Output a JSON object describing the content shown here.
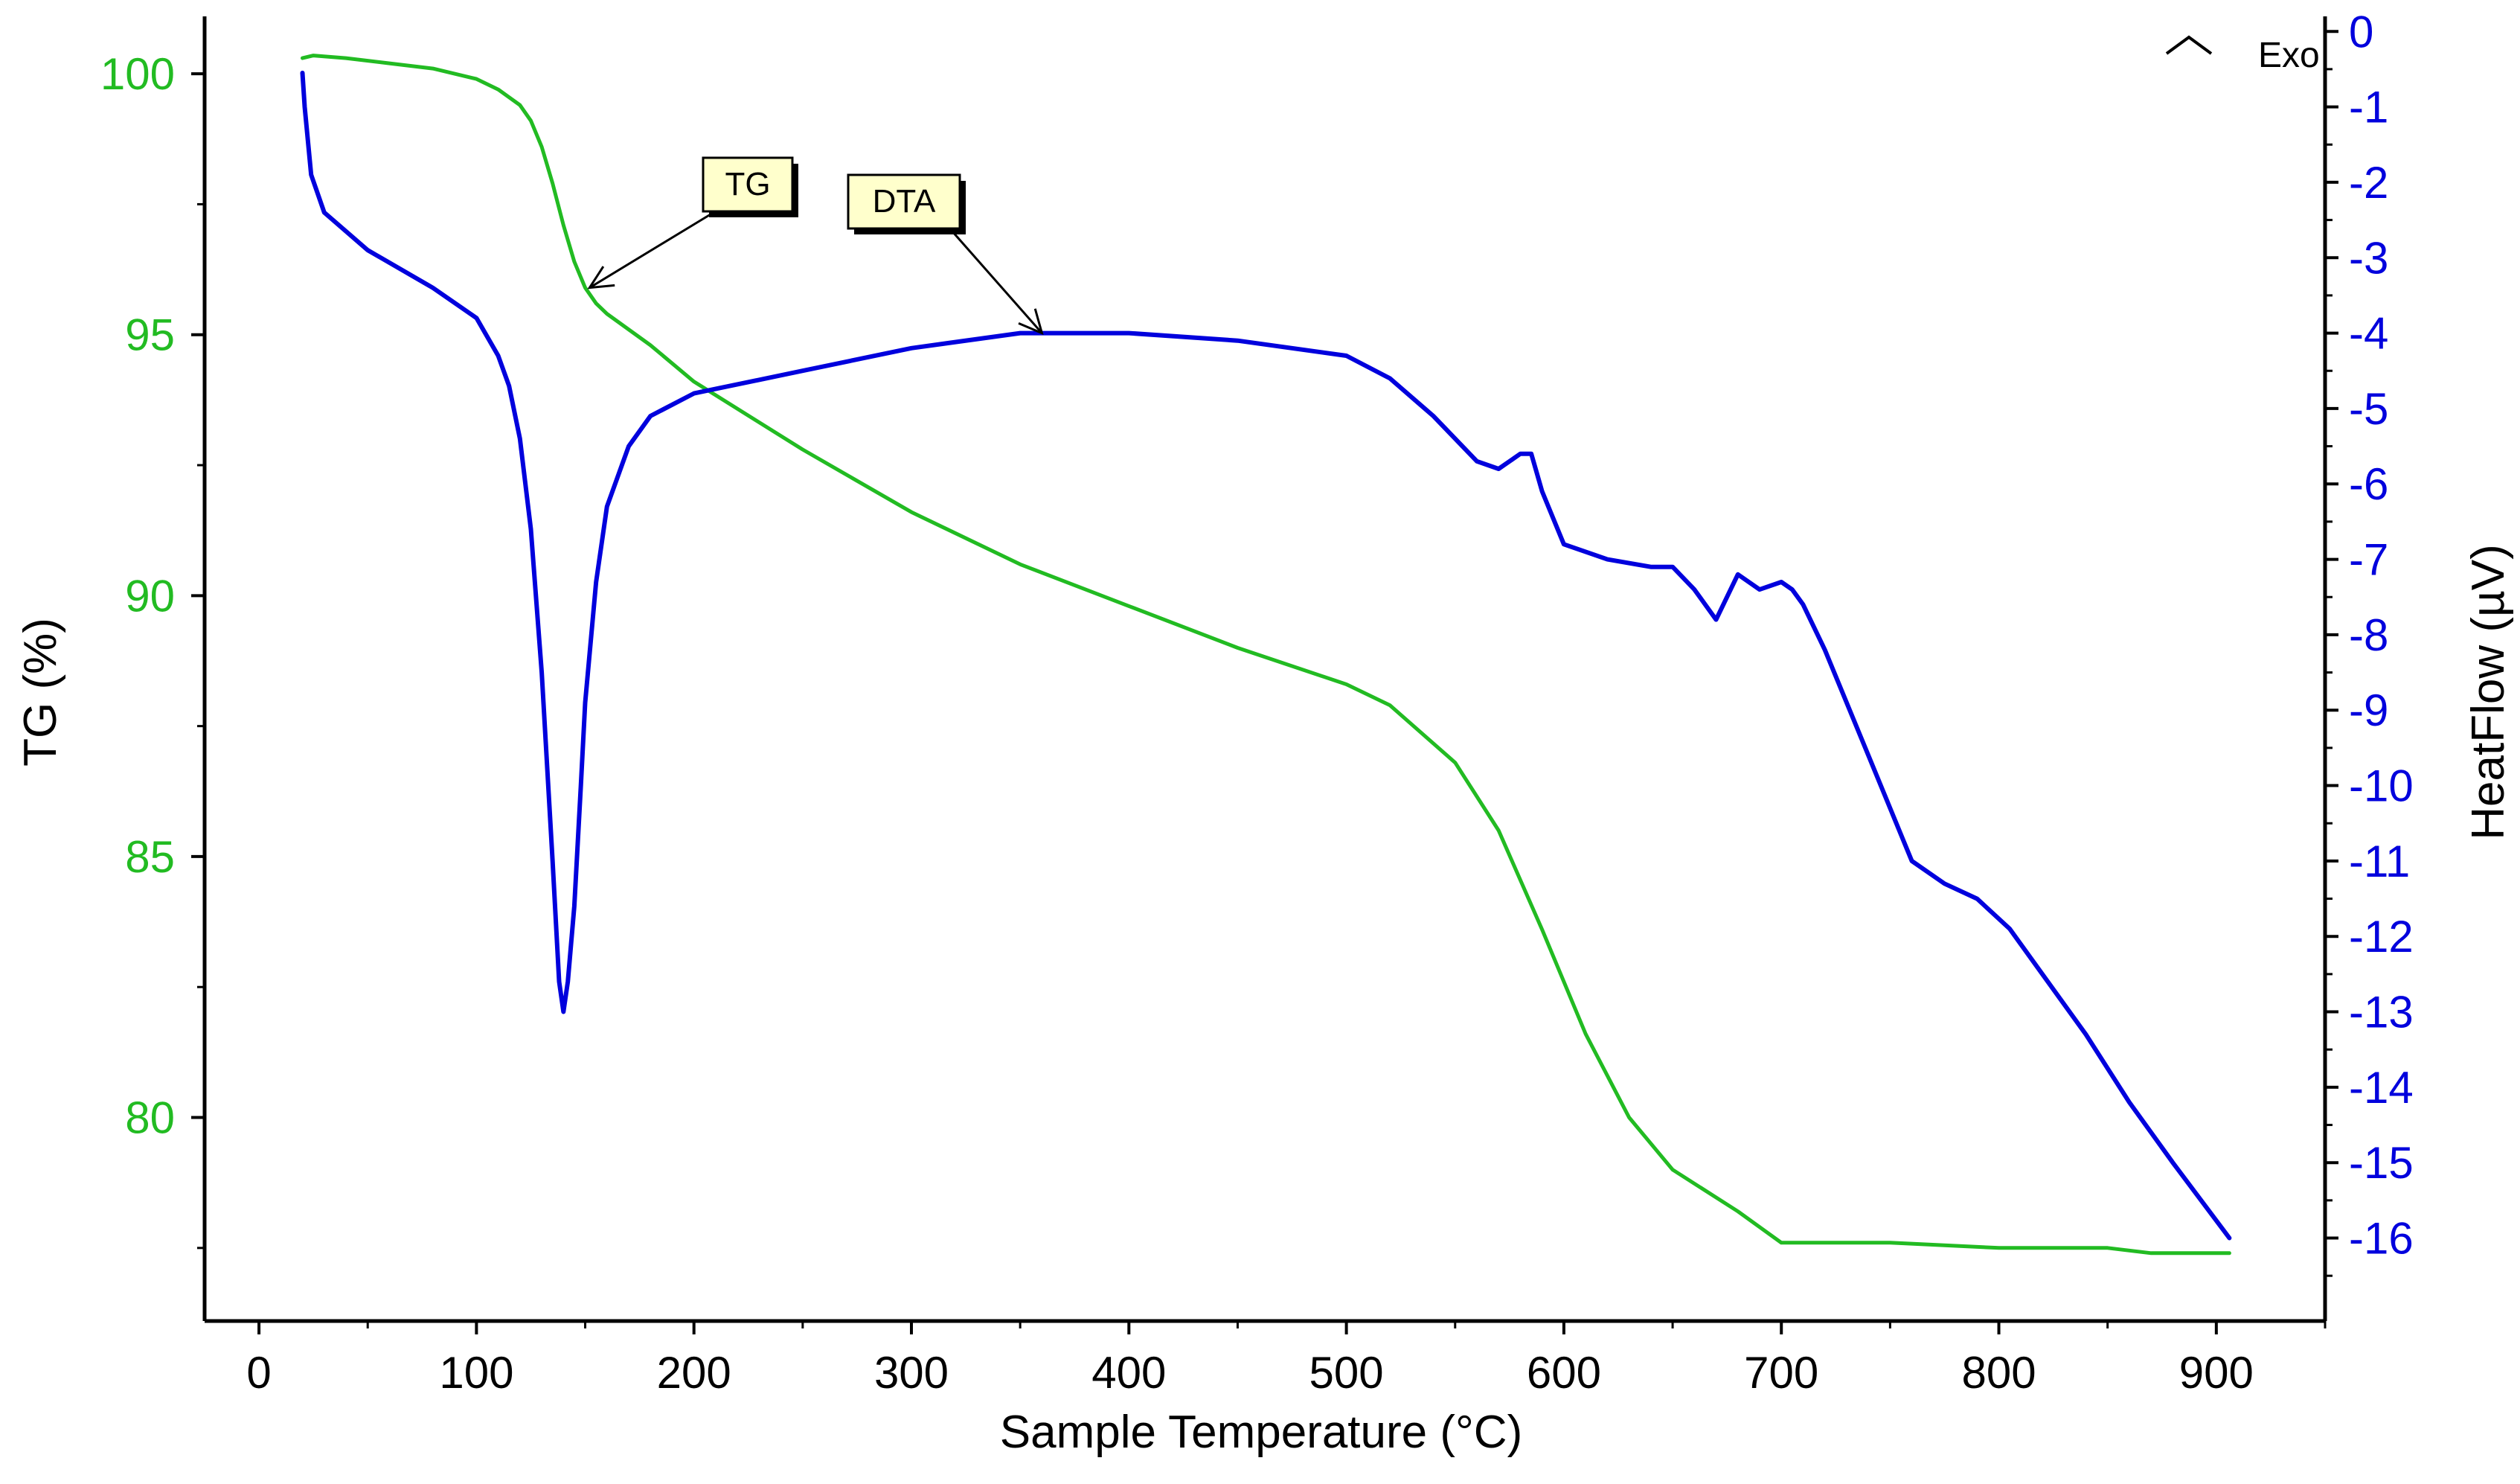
{
  "chart_data": {
    "type": "line",
    "title": "",
    "xlabel": "Sample Temperature (°C)",
    "ylabel_left": "TG (%)",
    "ylabel_right": "HeatFlow (µV)",
    "xlim": [
      -25,
      950
    ],
    "ylim_left": [
      76.1,
      101.1
    ],
    "ylim_right": [
      -17.1,
      0.2
    ],
    "x_ticks": [
      0,
      100,
      200,
      300,
      400,
      500,
      600,
      700,
      800,
      900
    ],
    "y_left_ticks": [
      80,
      85,
      90,
      95,
      100
    ],
    "y_right_ticks": [
      0,
      -1,
      -2,
      -3,
      -4,
      -5,
      -6,
      -7,
      -8,
      -9,
      -10,
      -11,
      -12,
      -13,
      -14,
      -15,
      -16
    ],
    "colors": {
      "tg": "#22bb22",
      "dta": "#0000dd",
      "left_axis_labels": "#22bb22",
      "right_axis_labels": "#0000dd",
      "callout_fill": "#ffffcc"
    },
    "series": [
      {
        "name": "TG",
        "axis": "left",
        "x": [
          20,
          25,
          40,
          60,
          80,
          100,
          110,
          120,
          125,
          130,
          135,
          140,
          145,
          150,
          155,
          160,
          180,
          200,
          250,
          300,
          350,
          400,
          450,
          500,
          520,
          550,
          570,
          590,
          610,
          630,
          650,
          680,
          700,
          750,
          800,
          850,
          870,
          906
        ],
        "values": [
          100.3,
          100.35,
          100.3,
          100.2,
          100.1,
          99.9,
          99.7,
          99.4,
          99.1,
          98.6,
          97.9,
          97.1,
          96.4,
          95.9,
          95.6,
          95.4,
          94.8,
          94.1,
          92.8,
          91.6,
          90.6,
          89.8,
          89.0,
          88.3,
          87.9,
          86.8,
          85.5,
          83.6,
          81.6,
          80.0,
          79.0,
          78.2,
          77.6,
          77.6,
          77.5,
          77.5,
          77.4,
          77.4
        ]
      },
      {
        "name": "DTA",
        "axis": "right",
        "x": [
          20,
          21,
          24,
          30,
          50,
          80,
          100,
          110,
          115,
          120,
          125,
          130,
          135,
          138,
          140,
          142,
          145,
          148,
          150,
          155,
          160,
          170,
          180,
          200,
          250,
          300,
          350,
          400,
          450,
          500,
          520,
          540,
          560,
          570,
          580,
          585,
          590,
          600,
          620,
          640,
          650,
          660,
          670,
          680,
          690,
          700,
          705,
          710,
          720,
          740,
          760,
          775,
          790,
          805,
          820,
          840,
          860,
          880,
          906
        ],
        "values": [
          -0.55,
          -1.0,
          -1.9,
          -2.4,
          -2.9,
          -3.4,
          -3.8,
          -4.3,
          -4.7,
          -5.4,
          -6.6,
          -8.5,
          -11.0,
          -12.6,
          -13.0,
          -12.6,
          -11.6,
          -10.0,
          -8.9,
          -7.3,
          -6.3,
          -5.5,
          -5.1,
          -4.8,
          -4.5,
          -4.2,
          -4.0,
          -4.0,
          -4.1,
          -4.3,
          -4.6,
          -5.1,
          -5.7,
          -5.8,
          -5.6,
          -5.6,
          -6.1,
          -6.8,
          -7.0,
          -7.1,
          -7.1,
          -7.4,
          -7.8,
          -7.2,
          -7.4,
          -7.3,
          -7.4,
          -7.6,
          -8.2,
          -9.6,
          -11.0,
          -11.3,
          -11.5,
          -11.9,
          -12.5,
          -13.3,
          -14.2,
          -15.0,
          -16.0
        ]
      }
    ],
    "annotations": [
      {
        "label": "TG",
        "target_series": "TG",
        "x": 152,
        "y": 95.9
      },
      {
        "label": "DTA",
        "target_series": "DTA",
        "x": 360,
        "y": -4.0
      }
    ],
    "exo_indicator": {
      "label": "Exo",
      "direction": "up"
    }
  }
}
